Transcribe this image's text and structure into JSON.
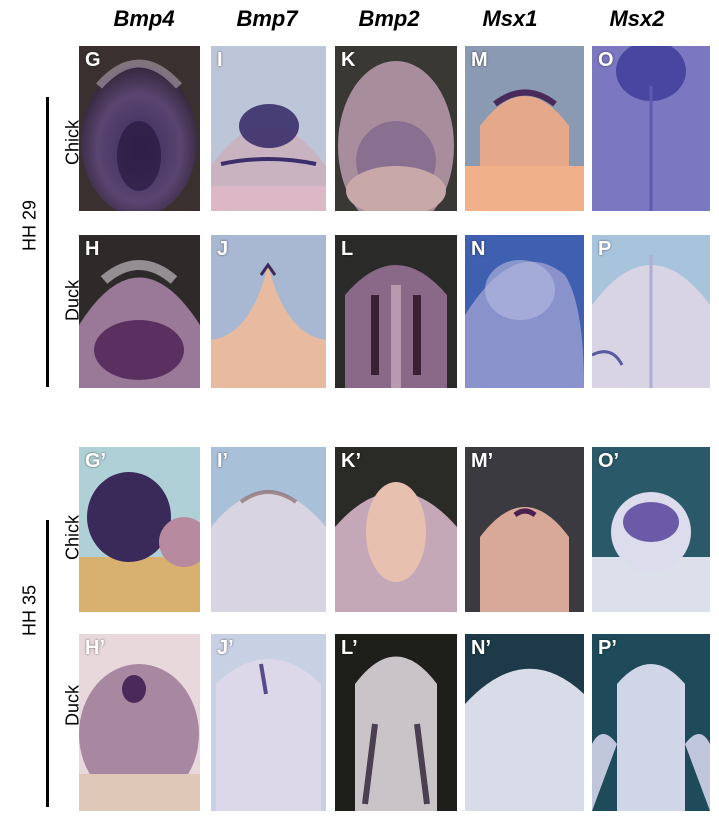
{
  "figure": {
    "genes": [
      "Bmp4",
      "Bmp7",
      "Bmp2",
      "Msx1",
      "Msx2"
    ],
    "stages": [
      {
        "label": "HH 29",
        "species": [
          "Chick",
          "Duck"
        ]
      },
      {
        "label": "HH 35",
        "species": [
          "Chick",
          "Duck"
        ]
      }
    ],
    "panels": [
      [
        "G",
        "I",
        "K",
        "M",
        "O"
      ],
      [
        "H",
        "J",
        "L",
        "N",
        "P"
      ],
      [
        "G’",
        "I’",
        "K’",
        "M’",
        "O’"
      ],
      [
        "H’",
        "J’",
        "L’",
        "N’",
        "P’"
      ]
    ]
  }
}
